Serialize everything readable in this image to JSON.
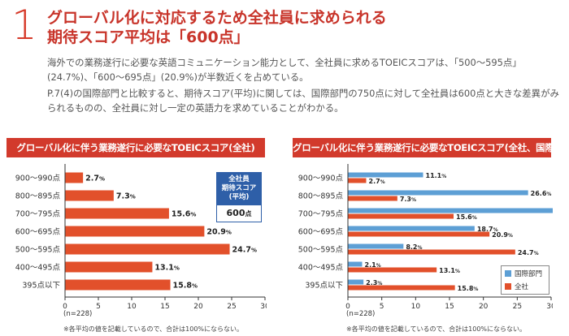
{
  "section_number": "1",
  "title_line1": "グローバル化に対応するため全社員に求められる",
  "title_line2": "期待スコア平均は「600点」",
  "paragraph1": "海外での業務遂行に必要な英語コミュニケーション能力として、全社員に求めるTOEICスコアは、「500〜595点」(24.7%)、「600〜695点」(20.9%)が半数近くを占めている。",
  "paragraph2": "P.7(4)の国際部門と比較すると、期待スコア(平均)に関しては、国際部門の750点に対して全社員は600点と大きな差異がみられるものの、全社員に対し一定の英語力を求めていることがわかる。",
  "colors": {
    "accent": "#d23a2c",
    "all_bar": "#e2502b",
    "intl_bar": "#5d9fd5",
    "avg_box": "#2e5fa8"
  },
  "chart_data": [
    {
      "type": "bar",
      "orientation": "horizontal",
      "title": "グローバル化に伴う業務遂行に必要なTOEICスコア(全社)",
      "categories": [
        "900〜990点",
        "800〜895点",
        "700〜795点",
        "600〜695点",
        "500〜595点",
        "400〜495点",
        "395点以下"
      ],
      "series": [
        {
          "values": [
            2.7,
            7.3,
            15.6,
            20.9,
            24.7,
            13.1,
            15.8
          ]
        }
      ],
      "value_suffix": "%",
      "xlim": [
        0,
        30
      ],
      "xticks": [
        0,
        5,
        10,
        15,
        20,
        25,
        30
      ],
      "sample_label": "(n=228)",
      "note": "※各平均の値を記載しているので、合計は100%にならない。",
      "average_box": {
        "label": "全社員期待スコア(平均)",
        "value": "600",
        "unit": "点"
      }
    },
    {
      "type": "bar",
      "orientation": "horizontal",
      "title": "グローバル化に伴う業務遂行に必要なTOEICスコア(全社、国際部門)",
      "categories": [
        "900〜990点",
        "800〜895点",
        "700〜795点",
        "600〜695点",
        "500〜595点",
        "400〜495点",
        "395点以下"
      ],
      "series": [
        {
          "name": "国際部門",
          "values": [
            11.1,
            26.6,
            30.9,
            18.7,
            8.2,
            2.1,
            2.3
          ]
        },
        {
          "name": "全社",
          "values": [
            2.7,
            7.3,
            15.6,
            20.9,
            24.7,
            13.1,
            15.8
          ]
        }
      ],
      "value_suffix": "%",
      "xlim": [
        0,
        30
      ],
      "xticks": [
        0,
        5,
        10,
        15,
        20,
        25,
        30
      ],
      "sample_label": "(n=228)",
      "note": "※各平均の値を記載しているので、合計は100%にならない。",
      "legend_position": "bottom-right"
    }
  ]
}
